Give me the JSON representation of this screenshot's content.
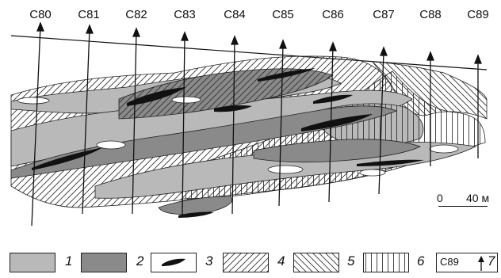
{
  "wells": [
    "C80",
    "C81",
    "C82",
    "C83",
    "C84",
    "C85",
    "C86",
    "C87",
    "C88",
    "C89"
  ],
  "scale": {
    "zero": "0",
    "length_label": "40 м"
  },
  "legend": [
    {
      "num": "1",
      "pattern": "light-gray-fill",
      "color": "#b9b9b9"
    },
    {
      "num": "2",
      "pattern": "dark-gray-fill",
      "color": "#8a8a8a"
    },
    {
      "num": "3",
      "pattern": "black-lens",
      "color": "#111111"
    },
    {
      "num": "4",
      "pattern": "right-diagonal-hatch",
      "color": "#333333"
    },
    {
      "num": "5",
      "pattern": "left-diagonal-hatch",
      "color": "#333333"
    },
    {
      "num": "6",
      "pattern": "vertical-hatch",
      "color": "#333333"
    },
    {
      "num": "7",
      "pattern": "well-symbol",
      "label": "C89"
    }
  ]
}
